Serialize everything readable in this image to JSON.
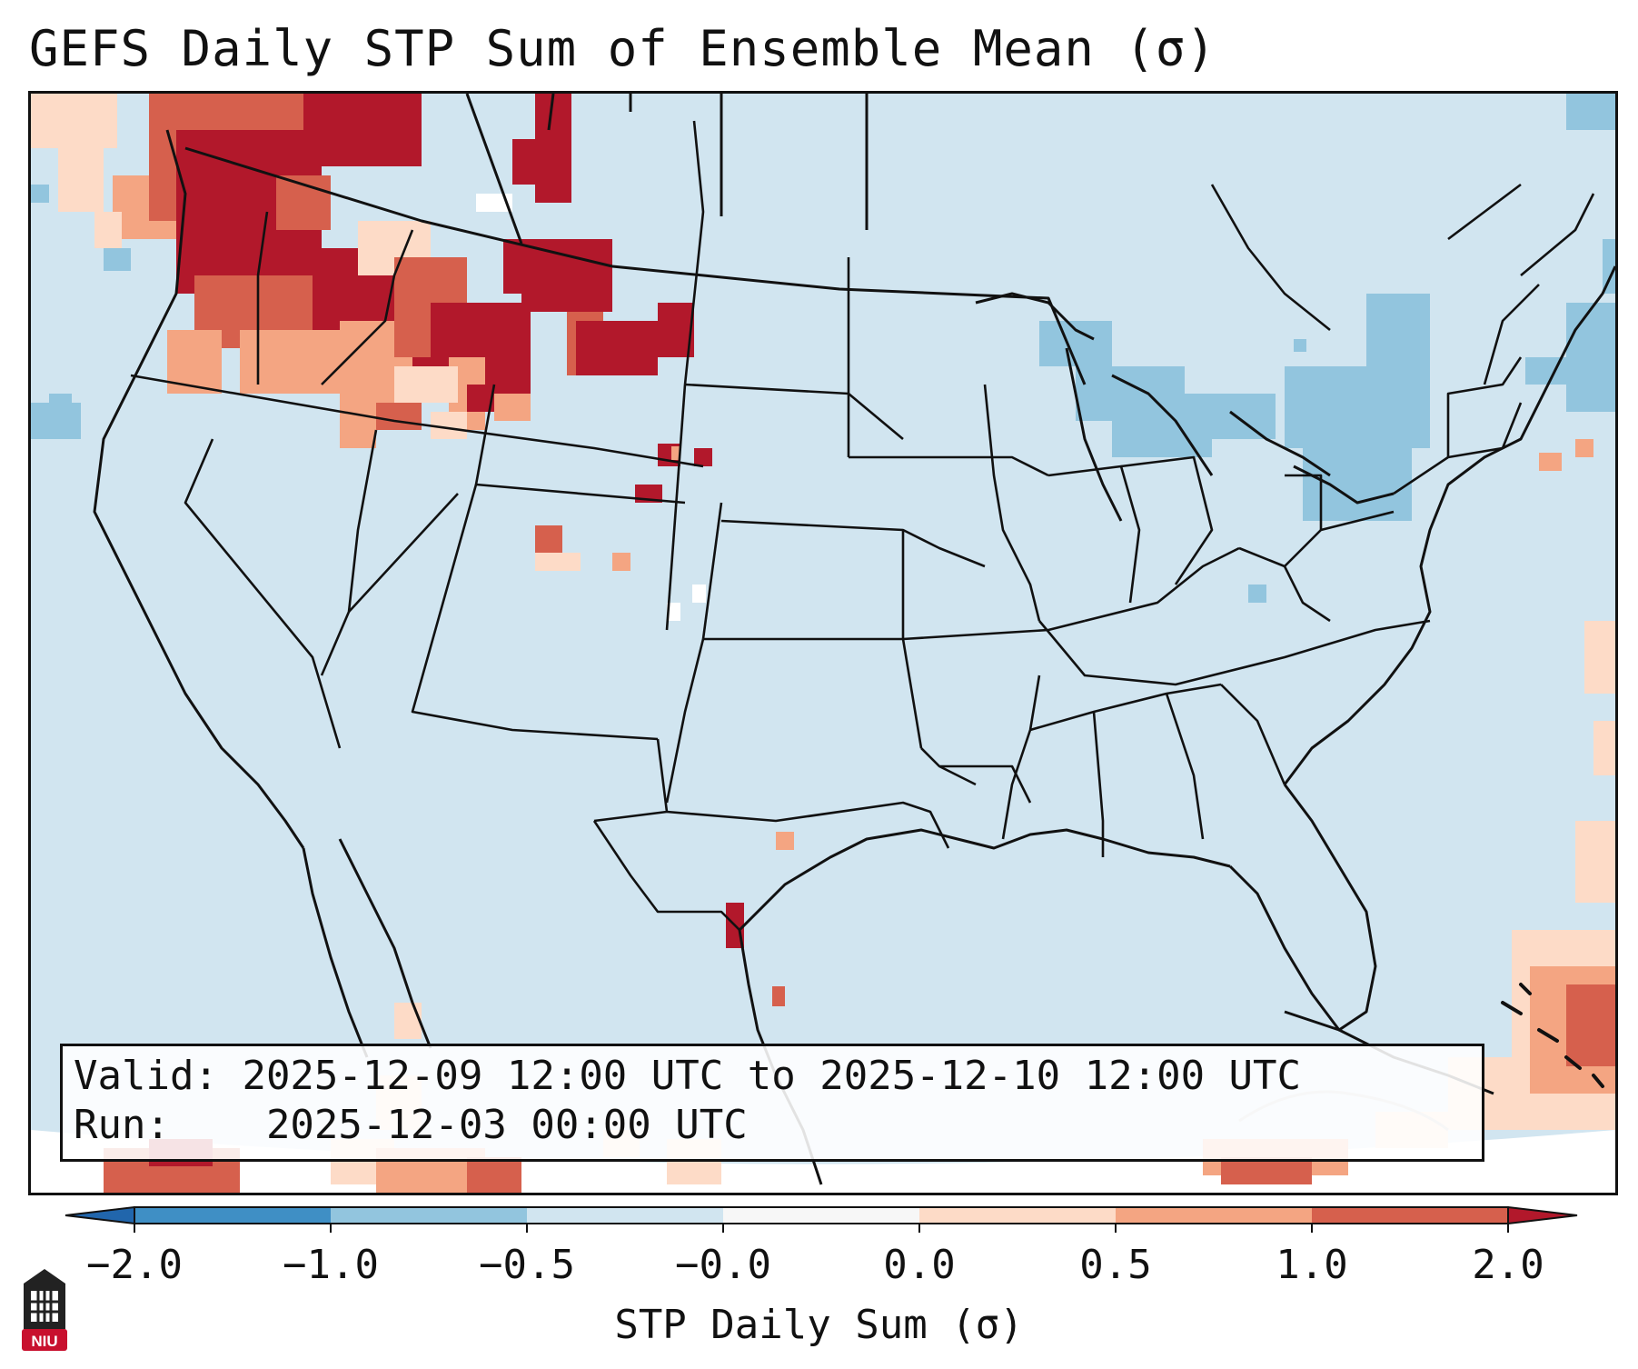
{
  "title": "GEFS Daily STP Sum of Ensemble Mean (σ)",
  "info": {
    "valid_label": "Valid:",
    "valid_value": "2025-12-09 12:00 UTC to 2025-12-10 12:00 UTC",
    "run_label": "Run:",
    "run_value": "2025-12-03 00:00 UTC"
  },
  "colorbar": {
    "label": "STP Daily Sum (σ)",
    "ticks": [
      "−2.0",
      "−1.0",
      "−0.5",
      "−0.0",
      "0.0",
      "0.5",
      "1.0",
      "2.0"
    ],
    "bins": [
      {
        "range": "-2.0 to -1.0",
        "color": "#3f8fc5"
      },
      {
        "range": "-1.0 to -0.5",
        "color": "#92c5de"
      },
      {
        "range": "-0.5 to -0.0",
        "color": "#d1e5f0"
      },
      {
        "range": "-0.0 to 0.0",
        "color": "#f7f7f7"
      },
      {
        "range": "0.0 to 0.5",
        "color": "#fddbc7"
      },
      {
        "range": "0.5 to 1.0",
        "color": "#f4a582"
      },
      {
        "range": "1.0 to 2.0",
        "color": "#d6604d"
      }
    ],
    "under_color": "#2166ac",
    "over_color": "#b2182b"
  },
  "map": {
    "background_color": "#d1e5f0",
    "border_color": "#111111"
  },
  "logo": {
    "text": "NIU",
    "color": "#c8102e"
  }
}
